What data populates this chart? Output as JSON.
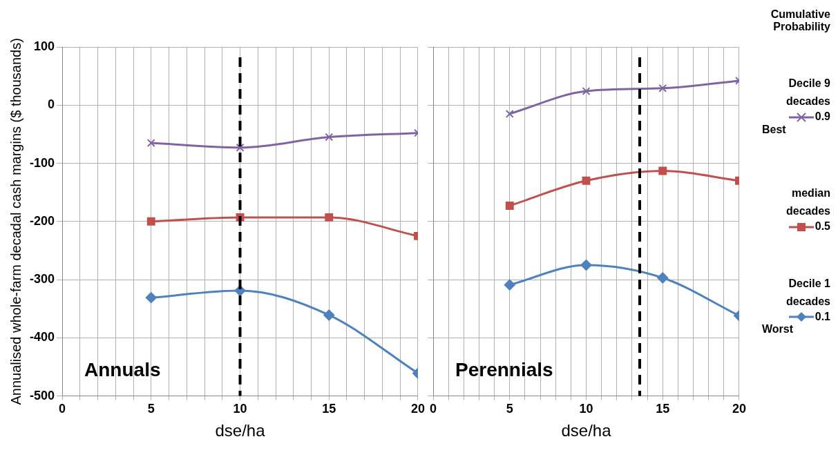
{
  "chart_data": [
    {
      "type": "line",
      "title": "Annuals",
      "xlabel": "dse/ha",
      "ylabel": "Annualised whole-farm decadal cash margins ($ thousands)",
      "x": [
        5,
        10,
        15,
        20
      ],
      "series": [
        {
          "name": "0.9",
          "color": "#8064a2",
          "marker": "cross",
          "values": [
            -65,
            -73,
            -55,
            -48
          ]
        },
        {
          "name": "0.5",
          "color": "#c0504d",
          "marker": "square",
          "values": [
            -200,
            -193,
            -193,
            -225
          ]
        },
        {
          "name": "0.1",
          "color": "#4f81bd",
          "marker": "diamond",
          "values": [
            -331,
            -319,
            -361,
            -461
          ]
        }
      ],
      "xlim": [
        0,
        20
      ],
      "xticks": [
        0,
        {
          "value": 1,
          "label": null
        },
        {
          "value": 2,
          "label": null
        },
        {
          "value": 3,
          "label": null
        },
        {
          "value": 4,
          "label": null
        },
        5,
        {
          "value": 6,
          "label": null
        },
        {
          "value": 7,
          "label": null
        },
        {
          "value": 8,
          "label": null
        },
        {
          "value": 9,
          "label": null
        },
        10,
        {
          "value": 11,
          "label": null
        },
        {
          "value": 12,
          "label": null
        },
        {
          "value": 13,
          "label": null
        },
        {
          "value": 14,
          "label": null
        },
        15,
        {
          "value": 16,
          "label": null
        },
        {
          "value": 17,
          "label": null
        },
        {
          "value": 18,
          "label": null
        },
        {
          "value": 19,
          "label": null
        },
        20
      ],
      "ylim": [
        -500,
        100
      ],
      "yticks": [
        -500,
        -400,
        -300,
        -200,
        -100,
        0,
        100
      ],
      "grid": true,
      "ref_lines": [
        {
          "axis": "x",
          "value": 10,
          "color": "#000000",
          "line_style": "dashed"
        }
      ],
      "legend": "right",
      "legend_title": "Cumulative Probability",
      "annotations": [
        "Decile 9 decades",
        "Best",
        "median decades",
        "Decile 1 decades",
        "Worst"
      ]
    },
    {
      "type": "line",
      "title": "Perennials",
      "xlabel": "dse/ha",
      "x": [
        5,
        10,
        15,
        20
      ],
      "series": [
        {
          "name": "0.9",
          "color": "#8064a2",
          "marker": "cross",
          "values": [
            -15,
            24,
            29,
            42
          ]
        },
        {
          "name": "0.5",
          "color": "#c0504d",
          "marker": "square",
          "values": [
            -173,
            -130,
            -113,
            -130
          ]
        },
        {
          "name": "0.1",
          "color": "#4f81bd",
          "marker": "diamond",
          "values": [
            -309,
            -275,
            -297,
            -362
          ]
        }
      ],
      "xlim": [
        0,
        20
      ],
      "xticks": [
        0,
        {
          "value": 1,
          "label": null
        },
        {
          "value": 2,
          "label": null
        },
        {
          "value": 3,
          "label": null
        },
        {
          "value": 4,
          "label": null
        },
        5,
        {
          "value": 6,
          "label": null
        },
        {
          "value": 7,
          "label": null
        },
        {
          "value": 8,
          "label": null
        },
        {
          "value": 9,
          "label": null
        },
        10,
        {
          "value": 11,
          "label": null
        },
        {
          "value": 12,
          "label": null
        },
        {
          "value": 13,
          "label": null
        },
        {
          "value": 14,
          "label": null
        },
        15,
        {
          "value": 16,
          "label": null
        },
        {
          "value": 17,
          "label": null
        },
        {
          "value": 18,
          "label": null
        },
        {
          "value": 19,
          "label": null
        },
        20
      ],
      "ylim": [
        -500,
        100
      ],
      "yticks": [
        -500,
        -400,
        -300,
        -200,
        -100,
        0,
        100
      ],
      "grid": true,
      "tick_labels": "x",
      "ref_lines": [
        {
          "axis": "x",
          "value": 13.5,
          "color": "#000000",
          "line_style": "dashed"
        }
      ]
    }
  ]
}
